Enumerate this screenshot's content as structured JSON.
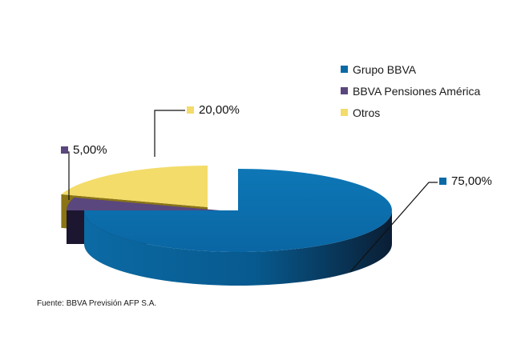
{
  "chart_data": {
    "type": "pie",
    "style": "3d-exploded",
    "categories": [
      "Grupo BBVA",
      "BBVA Pensiones América",
      "Otros"
    ],
    "values": [
      75.0,
      5.0,
      20.0
    ],
    "data_labels": [
      "75,00%",
      "5,00%",
      "20,00%"
    ],
    "legend_position": "top-right",
    "colors": [
      "#0a6aa6",
      "#5a477d",
      "#f3dc6a"
    ],
    "title": "",
    "source": "Fuente: BBVA Previsión AFP S.A."
  }
}
